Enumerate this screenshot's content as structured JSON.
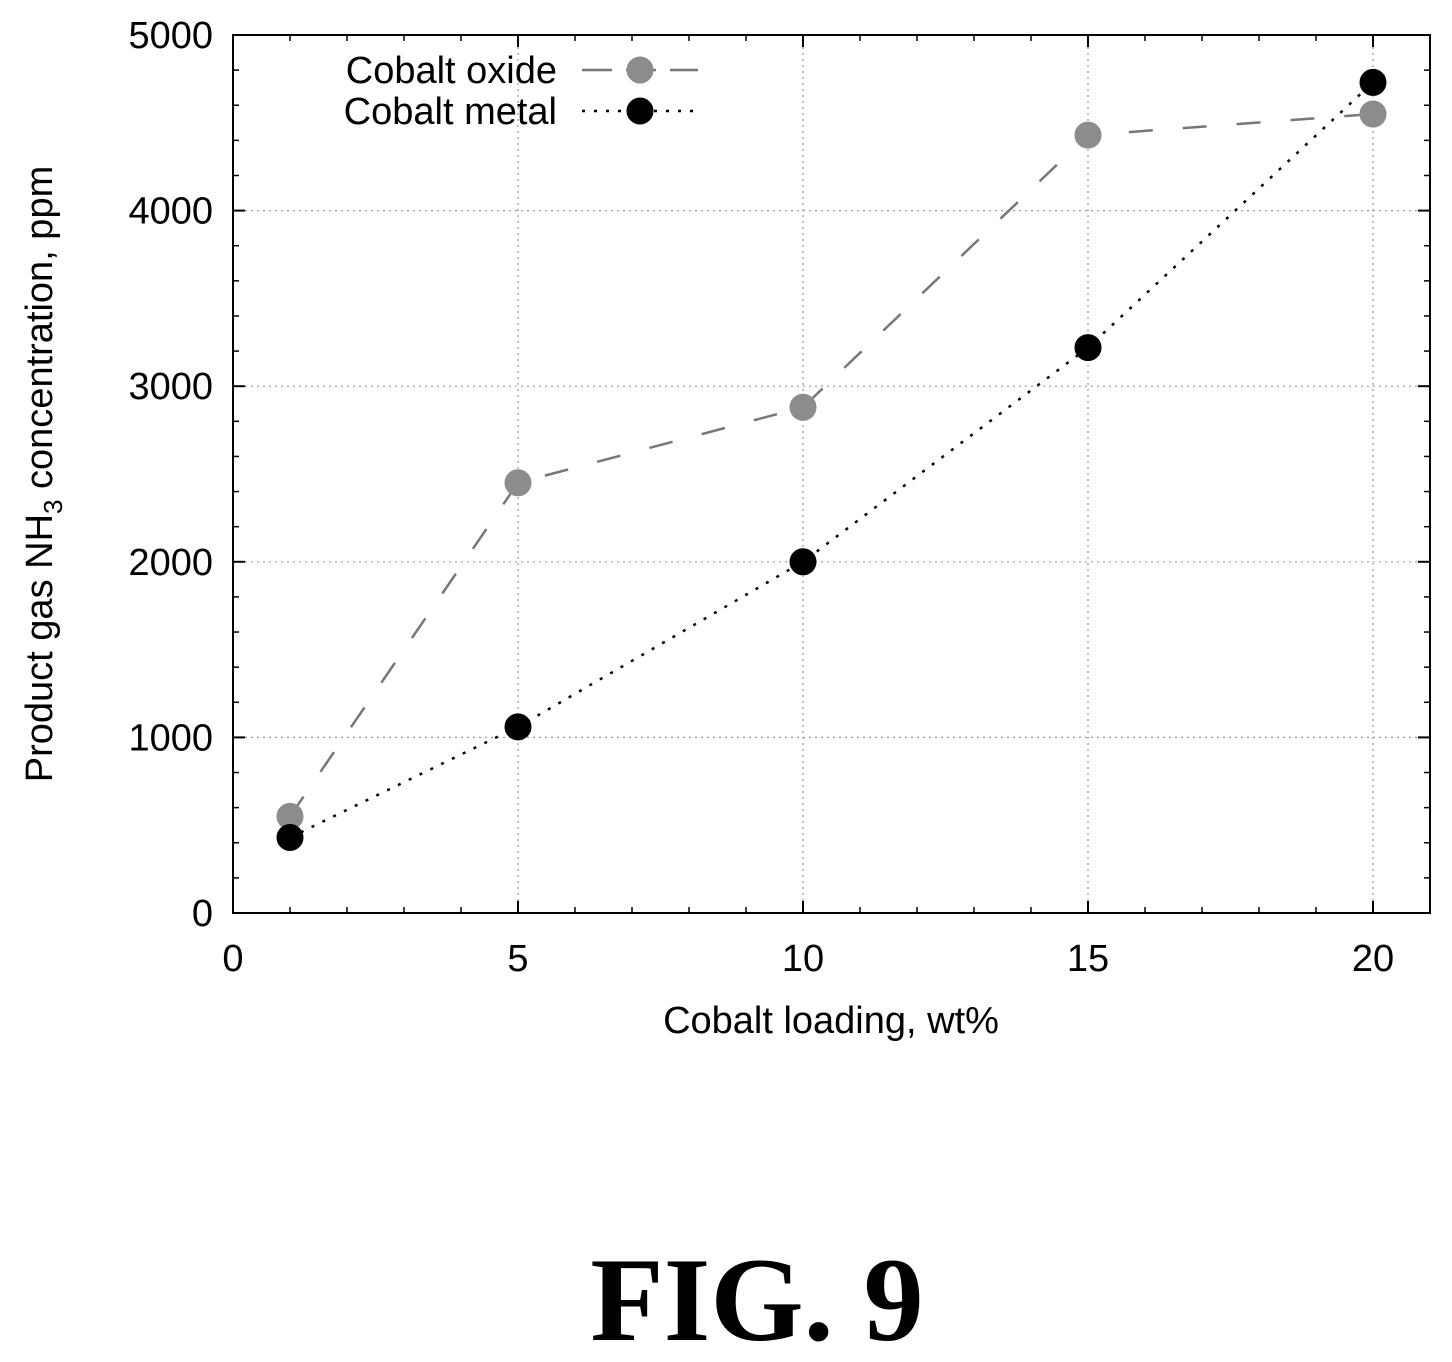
{
  "chart_data": {
    "type": "line",
    "xlabel": "Cobalt loading, wt%",
    "ylabel_parts": [
      "Product gas NH",
      "3",
      " concentration, ppm"
    ],
    "xlim": [
      0,
      21
    ],
    "ylim": [
      0,
      5000
    ],
    "xticks": [
      0,
      5,
      10,
      15,
      20
    ],
    "yticks": [
      0,
      1000,
      2000,
      3000,
      4000,
      5000
    ],
    "grid": true,
    "legend_position": "top-left",
    "series": [
      {
        "name": "Cobalt oxide",
        "x": [
          1,
          5,
          10,
          15,
          20
        ],
        "y": [
          550,
          2450,
          2880,
          4430,
          4550
        ],
        "color": "#8c8c8c",
        "line_style": "dashed"
      },
      {
        "name": "Cobalt metal",
        "x": [
          1,
          5,
          10,
          15,
          20
        ],
        "y": [
          430,
          1060,
          2000,
          3220,
          4730
        ],
        "color": "#000000",
        "line_style": "dotted"
      }
    ]
  },
  "caption": "FIG. 9"
}
